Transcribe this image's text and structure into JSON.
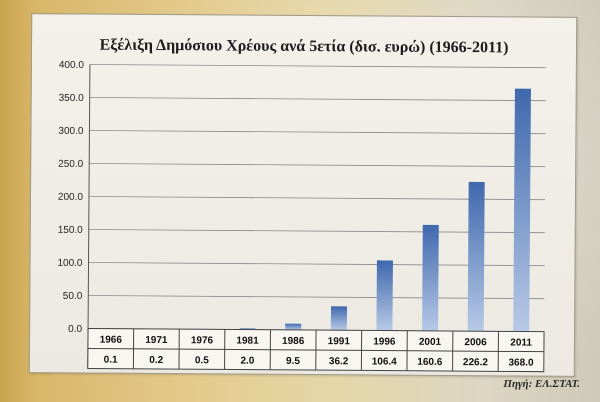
{
  "chart_data": {
    "type": "bar",
    "title": "Εξέλιξη Δημόσιου Χρέους ανά 5ετία (δισ. ευρώ) (1966-2011)",
    "categories": [
      "1966",
      "1971",
      "1976",
      "1981",
      "1986",
      "1991",
      "1996",
      "2001",
      "2006",
      "2011"
    ],
    "values": [
      0.1,
      0.2,
      0.5,
      2.0,
      9.5,
      36.2,
      106.4,
      160.6,
      226.2,
      368.0
    ],
    "value_labels": [
      "0.1",
      "0.2",
      "0.5",
      "2.0",
      "9.5",
      "36.2",
      "106.4",
      "160.6",
      "226.2",
      "368.0"
    ],
    "yticks": [
      "0.0",
      "50.0",
      "100.0",
      "150.0",
      "200.0",
      "250.0",
      "300.0",
      "350.0",
      "400.0"
    ],
    "ylim": [
      0,
      400
    ],
    "grid": true,
    "legend": "none",
    "bar_color": "#3f68ad"
  },
  "source": "Πηγή: ΕΛ.ΣΤΑΤ."
}
